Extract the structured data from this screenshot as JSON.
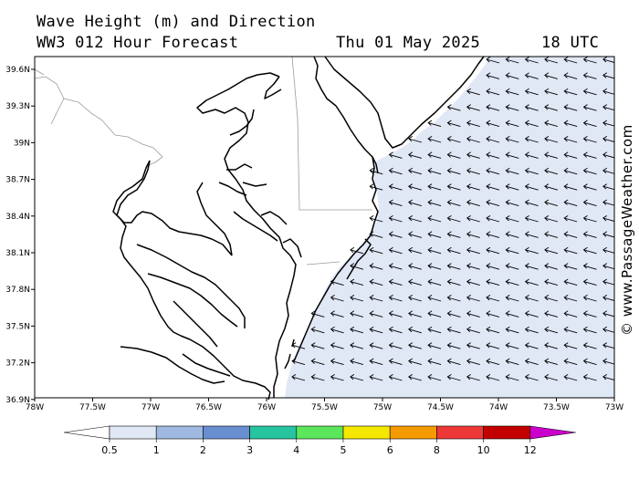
{
  "header": {
    "line1": "Wave Height (m) and Direction",
    "model": "WW3 012 Hour Forecast",
    "date": "Thu 01 May 2025",
    "time": "18 UTC"
  },
  "map": {
    "lat_labels": [
      "39.6N",
      "39.3N",
      "39N",
      "38.7N",
      "38.4N",
      "38.1N",
      "37.8N",
      "37.5N",
      "37.2N",
      "36.9N"
    ],
    "lon_labels": [
      "78W",
      "77.5W",
      "77W",
      "76.5W",
      "76W",
      "75.5W",
      "75W",
      "74.5W",
      "74W",
      "73.5W",
      "73W"
    ],
    "ocean_color": "#e1e8f5",
    "arrow_direction": "pointing west-northwest",
    "arrow_icon": "wave-direction-arrow-icon"
  },
  "colorbar": {
    "labels": [
      "0.5",
      "1",
      "2",
      "3",
      "4",
      "5",
      "6",
      "8",
      "10",
      "12"
    ],
    "colors": [
      "#e1e8f5",
      "#9fb9e0",
      "#6a8fd0",
      "#27c4a0",
      "#5ce65c",
      "#f4e800",
      "#f59a00",
      "#ee3838",
      "#c20000",
      "#cc00cc"
    ]
  },
  "copyright": "© www.PassageWeather.com"
}
